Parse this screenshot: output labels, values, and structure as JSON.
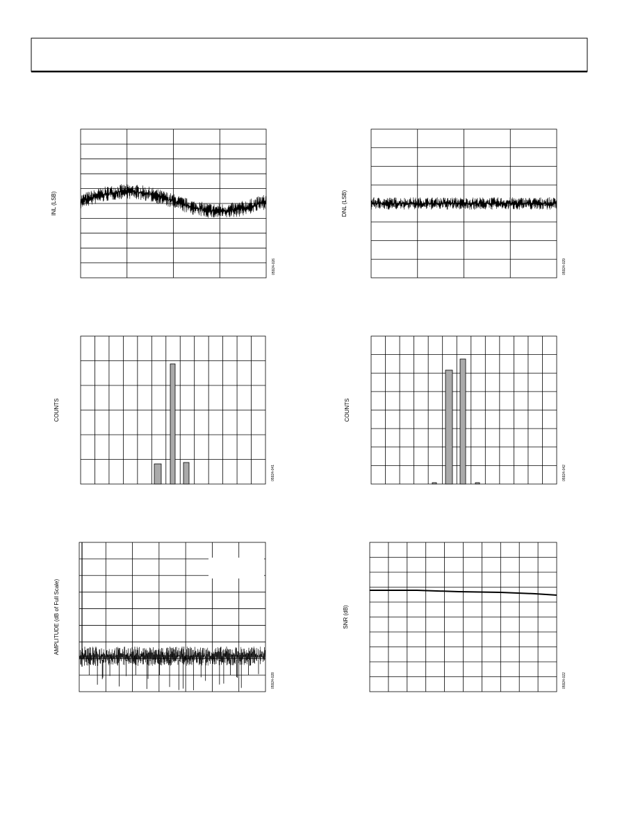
{
  "figures": [
    {
      "y_label": "INL (LSB)",
      "code": "05924-026"
    },
    {
      "y_label": "DNL (LSB)",
      "code": "05924-029"
    },
    {
      "y_label": "COUNTS",
      "code": "05924-041"
    },
    {
      "y_label": "COUNTS",
      "code": "05924-042"
    },
    {
      "y_label": "AMPLITUDE (dB of Full Scale)",
      "code": "05924-028"
    },
    {
      "y_label": "SNR (dB)",
      "code": "05924-022"
    }
  ]
}
